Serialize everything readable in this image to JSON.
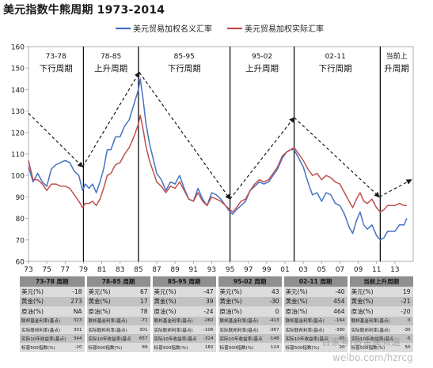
{
  "title": "美元指数牛熊周期 1973-2014",
  "chart_data": {
    "type": "line",
    "title": "美元指数牛熊周期 1973-2014",
    "xlabel": "",
    "ylabel": "",
    "xlim": [
      1973,
      2015
    ],
    "ylim": [
      60,
      160
    ],
    "yticks": [
      60,
      70,
      80,
      90,
      100,
      110,
      120,
      130,
      140,
      150,
      160
    ],
    "xtick_labels": [
      "73",
      "75",
      "77",
      "79",
      "81",
      "83",
      "85",
      "87",
      "89",
      "91",
      "93",
      "95",
      "97",
      "99",
      "01",
      "03",
      "05",
      "07",
      "09",
      "11",
      "13"
    ],
    "grid": false,
    "legend_position": "top",
    "series": [
      {
        "name": "美元贸易加权名义汇率",
        "color": "#4472c4",
        "points": [
          [
            1973.0,
            104
          ],
          [
            1973.5,
            97
          ],
          [
            1974.0,
            101
          ],
          [
            1974.5,
            97
          ],
          [
            1975.0,
            95
          ],
          [
            1975.5,
            103
          ],
          [
            1976.0,
            105
          ],
          [
            1976.5,
            106
          ],
          [
            1977.0,
            107
          ],
          [
            1977.5,
            106
          ],
          [
            1978.0,
            102
          ],
          [
            1978.5,
            100
          ],
          [
            1978.9,
            93
          ],
          [
            1979.2,
            96
          ],
          [
            1979.6,
            94
          ],
          [
            1980.0,
            96
          ],
          [
            1980.4,
            92
          ],
          [
            1980.8,
            97
          ],
          [
            1981.2,
            103
          ],
          [
            1981.6,
            112
          ],
          [
            1982.0,
            112
          ],
          [
            1982.5,
            118
          ],
          [
            1983.0,
            118
          ],
          [
            1983.5,
            123
          ],
          [
            1984.0,
            126
          ],
          [
            1984.5,
            133
          ],
          [
            1985.0,
            140
          ],
          [
            1985.2,
            145
          ],
          [
            1985.5,
            136
          ],
          [
            1985.8,
            125
          ],
          [
            1986.2,
            115
          ],
          [
            1986.6,
            108
          ],
          [
            1987.0,
            101
          ],
          [
            1987.5,
            98
          ],
          [
            1988.0,
            93
          ],
          [
            1988.5,
            97
          ],
          [
            1989.0,
            96
          ],
          [
            1989.5,
            100
          ],
          [
            1990.0,
            94
          ],
          [
            1990.5,
            89
          ],
          [
            1991.0,
            88
          ],
          [
            1991.5,
            94
          ],
          [
            1992.0,
            89
          ],
          [
            1992.5,
            86
          ],
          [
            1993.0,
            92
          ],
          [
            1993.5,
            91
          ],
          [
            1994.0,
            89
          ],
          [
            1994.5,
            86
          ],
          [
            1995.0,
            83
          ],
          [
            1995.3,
            82
          ],
          [
            1995.7,
            84
          ],
          [
            1996.2,
            86
          ],
          [
            1996.7,
            88
          ],
          [
            1997.2,
            93
          ],
          [
            1997.7,
            95
          ],
          [
            1998.2,
            97
          ],
          [
            1998.7,
            96
          ],
          [
            1999.2,
            97
          ],
          [
            1999.7,
            100
          ],
          [
            2000.2,
            103
          ],
          [
            2000.7,
            108
          ],
          [
            2001.2,
            111
          ],
          [
            2001.6,
            112
          ],
          [
            2002.0,
            112
          ],
          [
            2002.5,
            108
          ],
          [
            2003.0,
            104
          ],
          [
            2003.5,
            97
          ],
          [
            2004.0,
            91
          ],
          [
            2004.5,
            92
          ],
          [
            2005.0,
            88
          ],
          [
            2005.5,
            92
          ],
          [
            2006.0,
            91
          ],
          [
            2006.5,
            87
          ],
          [
            2007.0,
            86
          ],
          [
            2007.5,
            82
          ],
          [
            2008.0,
            76
          ],
          [
            2008.4,
            73
          ],
          [
            2008.8,
            79
          ],
          [
            2009.2,
            83
          ],
          [
            2009.6,
            77
          ],
          [
            2010.0,
            75
          ],
          [
            2010.5,
            77
          ],
          [
            2011.0,
            72
          ],
          [
            2011.4,
            70
          ],
          [
            2011.8,
            71
          ],
          [
            2012.2,
            74
          ],
          [
            2012.6,
            74
          ],
          [
            2013.0,
            74
          ],
          [
            2013.5,
            77
          ],
          [
            2014.0,
            77
          ],
          [
            2014.3,
            80
          ]
        ]
      },
      {
        "name": "美元贸易加权实际汇率",
        "color": "#c0504d",
        "points": [
          [
            1973.0,
            107
          ],
          [
            1973.5,
            98
          ],
          [
            1974.0,
            98
          ],
          [
            1974.5,
            96
          ],
          [
            1975.0,
            93
          ],
          [
            1975.5,
            96
          ],
          [
            1976.0,
            96
          ],
          [
            1976.5,
            95
          ],
          [
            1977.0,
            95
          ],
          [
            1977.5,
            94
          ],
          [
            1978.0,
            91
          ],
          [
            1978.5,
            88
          ],
          [
            1978.9,
            85
          ],
          [
            1979.2,
            87
          ],
          [
            1979.6,
            87
          ],
          [
            1980.0,
            88
          ],
          [
            1980.4,
            86
          ],
          [
            1980.8,
            89
          ],
          [
            1981.2,
            94
          ],
          [
            1981.6,
            100
          ],
          [
            1982.0,
            101
          ],
          [
            1982.5,
            105
          ],
          [
            1983.0,
            106
          ],
          [
            1983.5,
            110
          ],
          [
            1984.0,
            113
          ],
          [
            1984.5,
            118
          ],
          [
            1985.0,
            124
          ],
          [
            1985.2,
            128
          ],
          [
            1985.5,
            122
          ],
          [
            1985.8,
            114
          ],
          [
            1986.2,
            107
          ],
          [
            1986.6,
            102
          ],
          [
            1987.0,
            97
          ],
          [
            1987.5,
            95
          ],
          [
            1988.0,
            92
          ],
          [
            1988.5,
            95
          ],
          [
            1989.0,
            94
          ],
          [
            1989.5,
            97
          ],
          [
            1990.0,
            93
          ],
          [
            1990.5,
            89
          ],
          [
            1991.0,
            88
          ],
          [
            1991.5,
            92
          ],
          [
            1992.0,
            88
          ],
          [
            1992.5,
            86
          ],
          [
            1993.0,
            90
          ],
          [
            1993.5,
            89
          ],
          [
            1994.0,
            88
          ],
          [
            1994.5,
            86
          ],
          [
            1995.0,
            84
          ],
          [
            1995.3,
            83
          ],
          [
            1995.7,
            85
          ],
          [
            1996.2,
            88
          ],
          [
            1996.7,
            89
          ],
          [
            1997.2,
            93
          ],
          [
            1997.7,
            96
          ],
          [
            1998.2,
            98
          ],
          [
            1998.7,
            97
          ],
          [
            1999.2,
            98
          ],
          [
            1999.7,
            101
          ],
          [
            2000.2,
            104
          ],
          [
            2000.7,
            109
          ],
          [
            2001.2,
            111
          ],
          [
            2001.6,
            112
          ],
          [
            2002.0,
            113
          ],
          [
            2002.5,
            110
          ],
          [
            2003.0,
            107
          ],
          [
            2003.5,
            103
          ],
          [
            2004.0,
            100
          ],
          [
            2004.5,
            101
          ],
          [
            2005.0,
            98
          ],
          [
            2005.5,
            100
          ],
          [
            2006.0,
            99
          ],
          [
            2006.5,
            97
          ],
          [
            2007.0,
            96
          ],
          [
            2007.5,
            92
          ],
          [
            2008.0,
            88
          ],
          [
            2008.4,
            85
          ],
          [
            2008.8,
            89
          ],
          [
            2009.2,
            92
          ],
          [
            2009.6,
            88
          ],
          [
            2010.0,
            87
          ],
          [
            2010.5,
            89
          ],
          [
            2011.0,
            85
          ],
          [
            2011.4,
            83
          ],
          [
            2011.8,
            84
          ],
          [
            2012.2,
            86
          ],
          [
            2012.6,
            86
          ],
          [
            2013.0,
            86
          ],
          [
            2013.5,
            87
          ],
          [
            2014.0,
            86
          ],
          [
            2014.3,
            86
          ]
        ]
      }
    ],
    "period_dividers": [
      1979,
      1985,
      1995,
      2002,
      2011.4
    ],
    "periods": [
      {
        "range": "73-78",
        "trend": "下行周期",
        "x": 1976
      },
      {
        "range": "78-85",
        "trend": "上升周期",
        "x": 1982
      },
      {
        "range": "85-95",
        "trend": "下行周期",
        "x": 1990
      },
      {
        "range": "95-02",
        "trend": "上升周期",
        "x": 1998.5
      },
      {
        "range": "02-11",
        "trend": "下行周期",
        "x": 2006.5
      },
      {
        "range": "当前上",
        "trend": "升周期",
        "x": 2013.2
      }
    ],
    "trend_arrows": [
      {
        "from": [
          1973.0,
          129
        ],
        "to": [
          1978.9,
          104
        ]
      },
      {
        "from": [
          1978.9,
          104
        ],
        "to": [
          1985.1,
          148
        ]
      },
      {
        "from": [
          1985.1,
          148
        ],
        "to": [
          1995.0,
          89
        ]
      },
      {
        "from": [
          1995.0,
          89
        ],
        "to": [
          2002.0,
          127
        ]
      },
      {
        "from": [
          2002.0,
          127
        ],
        "to": [
          2011.3,
          90
        ]
      },
      {
        "from": [
          2011.3,
          90
        ],
        "to": [
          2014.8,
          98
        ]
      }
    ]
  },
  "stats_table": {
    "headers": [
      "73-78 周期",
      "78-85 周期",
      "85-95 周期",
      "95-02 周期",
      "02-11 周期",
      "当前上升周期"
    ],
    "rows": [
      {
        "size": "big",
        "band": "a",
        "cells": [
          [
            "美元(%)",
            "-18"
          ],
          [
            "美元(%)",
            "67"
          ],
          [
            "美元(%)",
            "-47"
          ],
          [
            "美元(%)",
            "43"
          ],
          [
            "美元(%)",
            "-40"
          ],
          [
            "美元(%)",
            "19"
          ]
        ]
      },
      {
        "size": "big",
        "band": "b",
        "cells": [
          [
            "黄金(%)",
            "273"
          ],
          [
            "黄金(%)",
            "17"
          ],
          [
            "黄金(%)",
            "39"
          ],
          [
            "黄金(%)",
            "-30"
          ],
          [
            "黄金(%)",
            "454"
          ],
          [
            "黄金(%)",
            "-21"
          ]
        ]
      },
      {
        "size": "big",
        "band": "a",
        "cells": [
          [
            "原油(%)",
            "NA"
          ],
          [
            "原油(%)",
            "78"
          ],
          [
            "原油(%)",
            "-24"
          ],
          [
            "原油(%)",
            "0"
          ],
          [
            "原油(%)",
            "464"
          ],
          [
            "原油(%)",
            "-20"
          ]
        ]
      },
      {
        "size": "small",
        "band": "b",
        "cells": [
          [
            "联邦基金利率(基点)",
            "323"
          ],
          [
            "联邦基金利率(基点)",
            "-71"
          ],
          [
            "联邦基金利率(基点)",
            "-260"
          ],
          [
            "联邦基金利率(基点)",
            "-413"
          ],
          [
            "联邦基金利率(基点)",
            "-164"
          ],
          [
            "联邦基金利率(基点)",
            "0"
          ]
        ]
      },
      {
        "size": "small",
        "band": "a",
        "cells": [
          [
            "实际联邦利率(基点)",
            "301"
          ],
          [
            "实际联邦利率(基点)",
            "301"
          ],
          [
            "实际联邦利率(基点)",
            "-106"
          ],
          [
            "实际联邦利率(基点)",
            "-367"
          ],
          [
            "实际联邦利率(基点)",
            "-380"
          ],
          [
            "实际联邦利率(基点)",
            "-30"
          ]
        ]
      },
      {
        "size": "small",
        "band": "b",
        "cells": [
          [
            "实际10年收益率(基点)",
            "344"
          ],
          [
            "实际10年收益率(基点)",
            "657"
          ],
          [
            "实际10年收益率(基点)",
            "-324"
          ],
          [
            "实际10年收益率(基点)",
            "-148"
          ],
          [
            "实际10年收益率(基点)",
            "-95"
          ],
          [
            "实际10年收益率(基点)",
            "-5"
          ]
        ]
      },
      {
        "size": "small",
        "band": "a",
        "cells": [
          [
            "标普500指数(%)",
            "-20"
          ],
          [
            "标普500指数(%)",
            "89"
          ],
          [
            "标普500指数(%)",
            "182"
          ],
          [
            "标普500指数(%)",
            "124"
          ],
          [
            "标普500指数(%)",
            "20"
          ],
          [
            "标普500指数(%)",
            "50"
          ]
        ]
      }
    ]
  },
  "watermark": {
    "text": "百家号/贵金属频道",
    "url": "weibo.com/hzrcg"
  }
}
